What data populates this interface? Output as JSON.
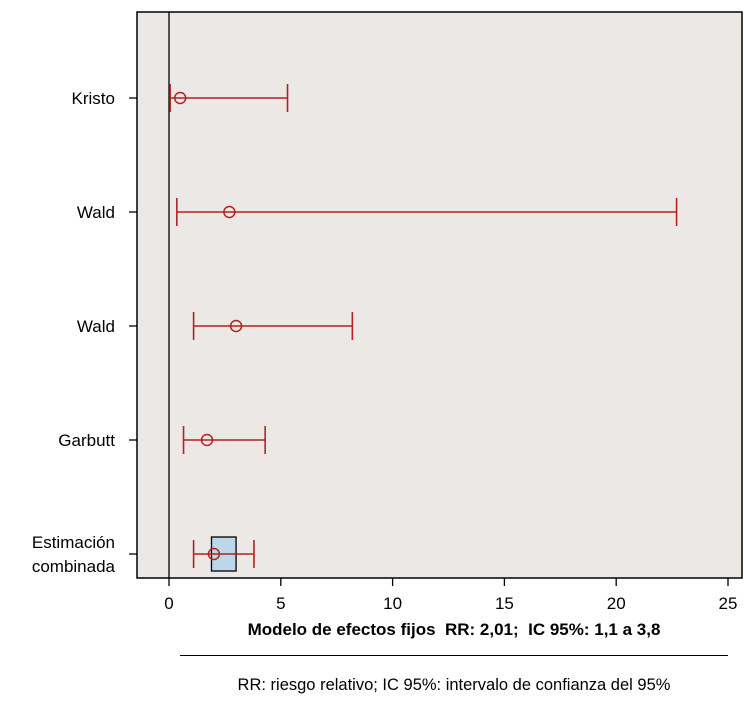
{
  "chart_data": {
    "type": "forest",
    "xlim": [
      -1.3,
      26
    ],
    "xticks": [
      0,
      5,
      10,
      15,
      20,
      25
    ],
    "reference_line": 0,
    "grid": false,
    "studies": [
      {
        "label": [
          "Kristo"
        ],
        "estimate": 0.5,
        "ci_low": 0.05,
        "ci_high": 5.3
      },
      {
        "label": [
          "Wald"
        ],
        "estimate": 2.7,
        "ci_low": 0.35,
        "ci_high": 22.7
      },
      {
        "label": [
          "Wald"
        ],
        "estimate": 3.0,
        "ci_low": 1.1,
        "ci_high": 8.2
      },
      {
        "label": [
          "Garbutt"
        ],
        "estimate": 1.7,
        "ci_low": 0.65,
        "ci_high": 4.3
      },
      {
        "label": [
          "Estimación",
          "combinada"
        ],
        "estimate": 2.01,
        "ci_low": 1.1,
        "ci_high": 3.8,
        "pooled": true,
        "box_low": 1.9,
        "box_high": 3.0
      }
    ],
    "colors": {
      "series": "#b22222",
      "panel": "#ebe8e6",
      "box": "#bcd6ea"
    }
  },
  "footer": {
    "model_summary": "Modelo de efectos fijos  RR: 2,01;  IC 95%: 1,1 a 3,8",
    "footnote": "RR: riesgo relativo; IC 95%: intervalo de confianza del 95%"
  }
}
